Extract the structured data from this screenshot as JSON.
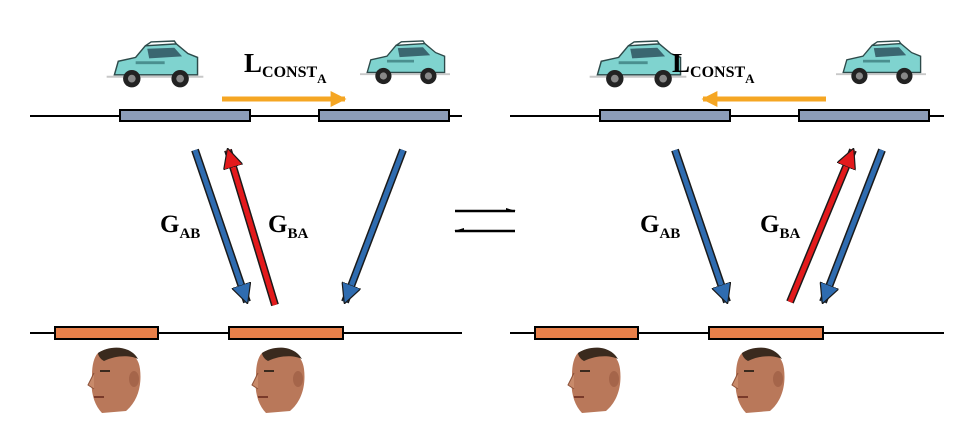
{
  "colors": {
    "domain_a_segment": "#8c9db8",
    "domain_b_segment": "#e8804a",
    "forward_arrow": "#2f6cb0",
    "backward_arrow": "#e31a1c",
    "lconst_arrow": "#f5a623",
    "car_body": "#7fd3cf",
    "face_skin": "#b9785a"
  },
  "panels": [
    {
      "lconst": {
        "main": "L",
        "sub1": "CONST",
        "sub2": "A"
      },
      "lconst_direction": "right",
      "g_ab": {
        "main": "G",
        "sub": "AB"
      },
      "g_ba": {
        "main": "G",
        "sub": "BA"
      }
    },
    {
      "lconst": {
        "main": "L",
        "sub1": "CONST",
        "sub2": "A"
      },
      "lconst_direction": "left",
      "g_ab": {
        "main": "G",
        "sub": "AB"
      },
      "g_ba": {
        "main": "G",
        "sub": "BA"
      }
    }
  ],
  "icons": {
    "car": "car-icon",
    "face": "face-icon",
    "equilibrium": "equilibrium-arrows-icon"
  }
}
